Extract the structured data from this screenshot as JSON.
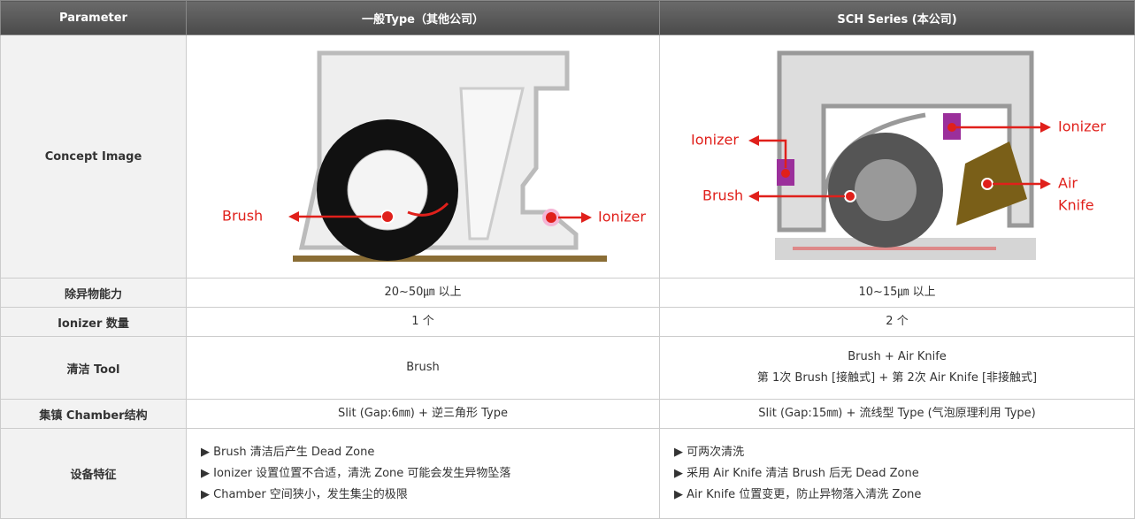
{
  "table": {
    "header": [
      "Parameter",
      "一般Type（其他公司）",
      "SCH Series (本公司)"
    ],
    "concept": {
      "label": "Concept Image",
      "general": {
        "brush": "Brush",
        "ionizer": "Ionizer"
      },
      "sch": {
        "ionizer_left": "Ionizer",
        "ionizer_right": "Ionizer",
        "brush": "Brush",
        "air_knife": [
          "Air",
          "Knife"
        ]
      }
    },
    "rows": [
      {
        "label": "除异物能力",
        "general": [
          "20~50㎛ 以上"
        ],
        "sch": [
          "10~15㎛ 以上"
        ]
      },
      {
        "label": "Ionizer 数量",
        "general": [
          "1 个"
        ],
        "sch": [
          "2 个"
        ]
      },
      {
        "label": "清洁 Tool",
        "general": [
          "Brush"
        ],
        "sch": [
          "Brush + Air Knife",
          "第 1次 Brush [接触式] + 第 2次 Air Knife [非接触式]"
        ]
      },
      {
        "label": "集镇 Chamber结构",
        "general": [
          "Slit (Gap:6㎜) + 逆三角形 Type"
        ],
        "sch": [
          "Slit (Gap:15㎜) + 流线型 Type (气泡原理利用 Type)"
        ]
      },
      {
        "label": "设备特征",
        "general": [
          "▶ Brush 清洁后产生 Dead Zone",
          "▶ Ionizer 设置位置不合适，清洗 Zone 可能会发生异物坠落",
          "▶ Chamber 空间狭小，发生集尘的极限"
        ],
        "sch": [
          "▶ 可两次清洗",
          "▶ 采用 Air Knife 清洁 Brush 后无 Dead Zone",
          "▶ Air Knife 位置变更，防止异物落入清洗 Zone"
        ]
      }
    ]
  }
}
